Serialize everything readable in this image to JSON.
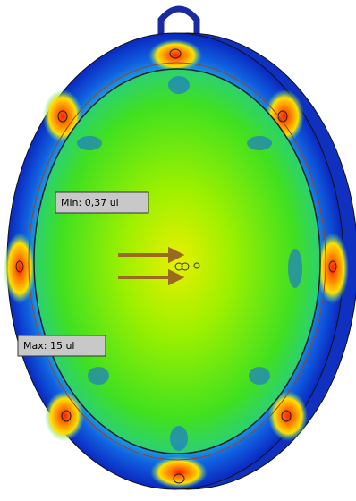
{
  "labels": {
    "min": "Min: 0,37 ul",
    "max": "Max: 15 ul"
  }
}
